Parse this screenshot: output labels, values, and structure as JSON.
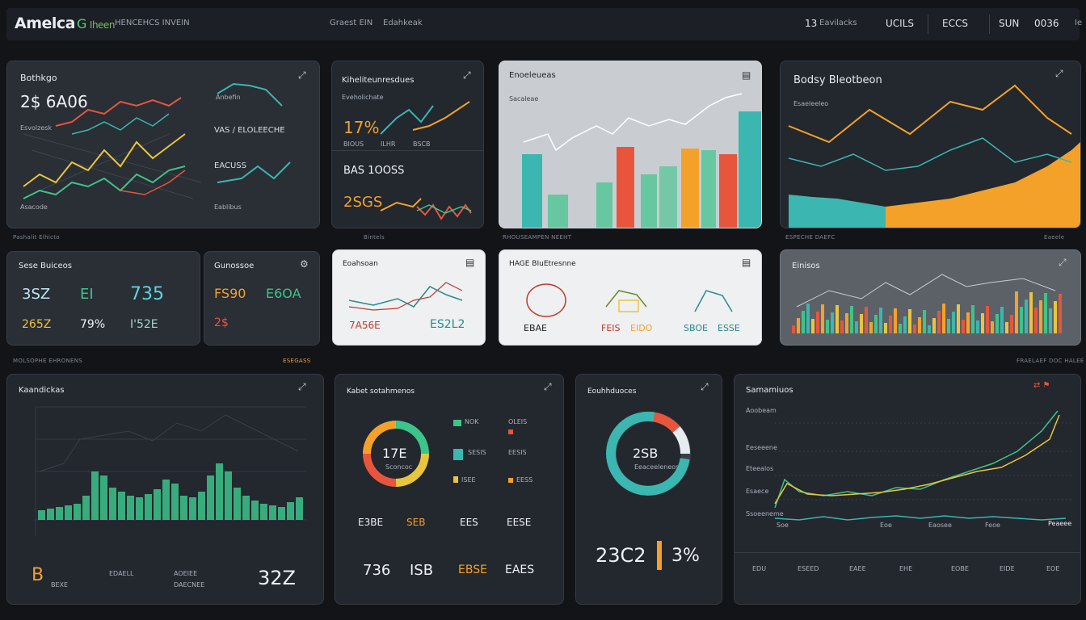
{
  "header": {
    "logo": "Amelca",
    "logo_accent": "G",
    "logo_sub": "Iheen",
    "subtitle": "HENCEHCS INVEIN",
    "center_label": "Graest EIN",
    "center_label2": "Edahkeak",
    "stats": [
      {
        "value": "13",
        "label": "Eavilacks"
      },
      {
        "value": "UCILS",
        "label": ""
      },
      {
        "value": "ECCS",
        "label": ""
      },
      {
        "value": "SUN",
        "label": ""
      },
      {
        "value": "0036",
        "label": ""
      }
    ],
    "crumb": "Ie"
  },
  "section_labels": {
    "row1_left": "Pashalit Elhicto",
    "row1_mid": "Bintels",
    "row1_mid2": "RHOUSEAMPEN NEEHT",
    "row1_right": "ESPECHE DAEFC",
    "row1_right2": "Eaeele",
    "row2_left": "MOLSOPHE EHRONENS",
    "row2_mid": "ESEGASS",
    "row2_right": "FRAELAEF DOC HALEE"
  },
  "p1": {
    "title": "Bothkgo",
    "value": "2$ 6A06",
    "sub": "Esvolzesk",
    "foot": "Asacode",
    "r1": "Anbefin",
    "r2": "VAS / ELOLEECHE",
    "r3": "EACUSS",
    "r4": "Eablibus"
  },
  "p2": {
    "title": "Kiheliteunresdues",
    "sub": "Eveholichate",
    "v1": "17%",
    "l1": "BIOUS",
    "l2": "ILHR",
    "l3": "BSCB",
    "v2": "BAS 1OOSS",
    "v3": "2SGS"
  },
  "p3": {
    "title": "Enoeleueas",
    "sub": "Sacaleae"
  },
  "p4": {
    "title": "Bodsy Bleotbeon",
    "sub": "Esaeleeleo"
  },
  "p5": {
    "title": "Sese Buiceos",
    "v1": "3SZ",
    "v2": "EI",
    "v3": "735",
    "v4": "265Z",
    "v5": "79%",
    "v6": "I'52E"
  },
  "p6": {
    "title": "Gunossoe",
    "v1": "FS90",
    "v2": "E6OA",
    "v3": "2$"
  },
  "p7": {
    "title": "Eoahsoan",
    "v1": "7A56E",
    "v2": "ES2L2"
  },
  "p8": {
    "title": "HAGE BIuEtresnne",
    "v1": "EBAE",
    "v2": "FEIS",
    "v3": "EIDO",
    "v4": "SBOE",
    "v5": "ESSE"
  },
  "p9": {
    "title": "Einisos"
  },
  "p10": {
    "title": "Kaandickas",
    "v": "32Z",
    "sym": "B",
    "f1": "BEXE",
    "f2": "EDAELL",
    "f3": "AOEIEE",
    "f4": "DAECNEE"
  },
  "p11": {
    "title": "Kabet sotahmenos",
    "center": "17E",
    "center_sub": "Sconcoc",
    "lg1": "NOK",
    "lg2": "OLEIS",
    "lg3": "SESIS",
    "lg4": "EESIS",
    "lg5": "ISEE",
    "lg6": "EESS",
    "b1": "E3BE",
    "b2": "SEB",
    "b3": "EES",
    "b4": "EESE",
    "n1": "736",
    "n2": "ISB",
    "n3": "EBSE",
    "n4": "EAES"
  },
  "p12": {
    "title": "Eouhhduoces",
    "center": "2SB",
    "center_sub": "Eeaceeleneose",
    "v": "23C2",
    "pct": "3%"
  },
  "p13": {
    "title": "Samamiuos",
    "ticks": [
      "Aoobeam",
      "Eeseeene",
      "Eteealos",
      "Esaece",
      "Ssoeeneme"
    ],
    "xt": [
      "Soe",
      "Eoe",
      "Eaosee",
      "Feoe",
      "Peaeee"
    ],
    "foot": [
      "EDU",
      "ESEED",
      "EAEE",
      "EHE",
      "EOBE",
      "EIDE",
      "EOE"
    ]
  },
  "colors": {
    "green": "#3cc48a",
    "teal": "#3bb6b0",
    "orange": "#f4a12a",
    "red": "#e8553d",
    "yellow": "#e9c53e"
  }
}
